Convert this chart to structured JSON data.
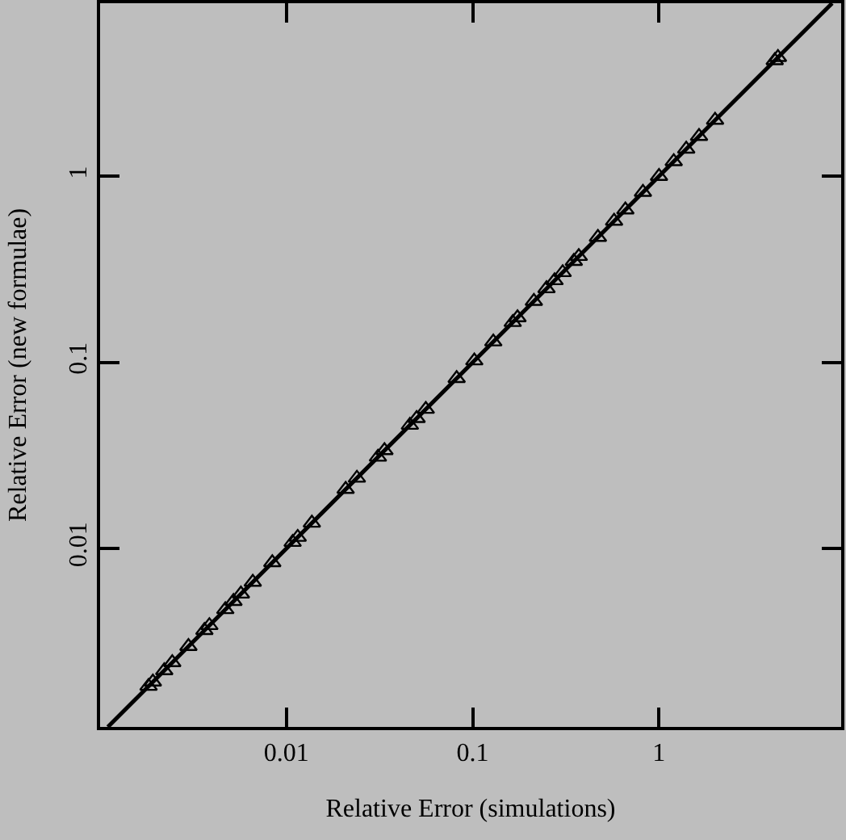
{
  "chart_data": {
    "type": "scatter",
    "xlabel": "Relative Error (simulations)",
    "ylabel": "Relative Error (new formulae)",
    "log": "xy",
    "xlim": [
      0.001,
      9.5
    ],
    "ylim": [
      0.0011,
      8.5
    ],
    "xticks": [
      0.01,
      0.1,
      1
    ],
    "yticks": [
      0.01,
      0.1,
      1
    ],
    "grid": false,
    "legend": false,
    "x": [
      0.00182,
      0.00192,
      0.00221,
      0.00244,
      0.00298,
      0.00363,
      0.00386,
      0.0047,
      0.0052,
      0.0057,
      0.0066,
      0.0084,
      0.0108,
      0.0115,
      0.0137,
      0.0208,
      0.0239,
      0.031,
      0.0336,
      0.046,
      0.05,
      0.056,
      0.082,
      0.102,
      0.129,
      0.164,
      0.174,
      0.213,
      0.249,
      0.275,
      0.304,
      0.349,
      0.371,
      0.47,
      0.574,
      0.66,
      0.82,
      1.0,
      1.2,
      1.4,
      1.64,
      2.0,
      4.18,
      4.35
    ],
    "series": [
      {
        "color": "#000000",
        "marker": "triangle",
        "values": [
          0.00182,
          0.00192,
          0.00221,
          0.00244,
          0.00298,
          0.00363,
          0.00386,
          0.0047,
          0.0052,
          0.0057,
          0.0066,
          0.0084,
          0.0108,
          0.0115,
          0.0137,
          0.0208,
          0.0239,
          0.031,
          0.0336,
          0.046,
          0.05,
          0.056,
          0.082,
          0.102,
          0.129,
          0.164,
          0.174,
          0.213,
          0.249,
          0.275,
          0.304,
          0.349,
          0.371,
          0.47,
          0.574,
          0.66,
          0.82,
          1.0,
          1.2,
          1.4,
          1.64,
          2.0,
          4.18,
          4.35
        ]
      },
      {
        "type": "line",
        "color": "#000000",
        "x": [
          0.0011,
          8.5
        ],
        "values": [
          0.0011,
          8.5
        ]
      }
    ]
  }
}
